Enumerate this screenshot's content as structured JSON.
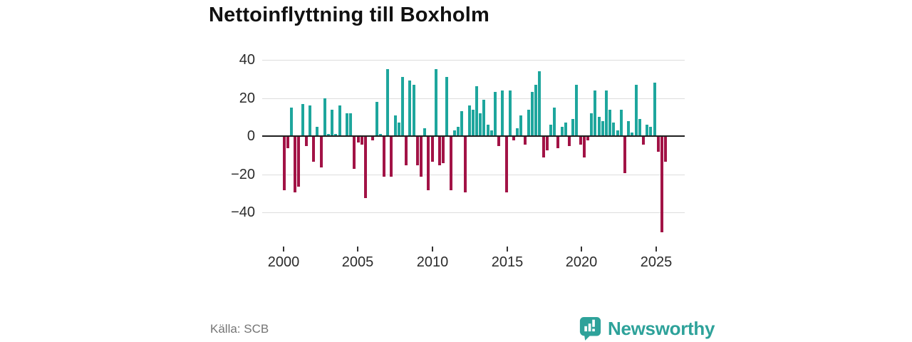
{
  "title": "Nettoinflyttning till Boxholm",
  "source": "Källa: SCB",
  "brand": {
    "name": "Newsworthy",
    "icon": "bar-chart-pin-icon"
  },
  "colors": {
    "positive_bar": "#1EA69D",
    "negative_bar": "#A21346",
    "gridline": "#DDDDDD",
    "zero_line": "#1F1F1F",
    "axis_text": "#2B2B2B",
    "title_text": "#111111",
    "source_text": "#757575",
    "brand_teal": "#2EA29A"
  },
  "chart_data": {
    "type": "bar",
    "title": "Nettoinflyttning till Boxholm",
    "frequency": "quarterly",
    "start_period": "2000 Q1",
    "end_period": "2025 Q4",
    "x_tick_labels": [
      "2000",
      "2005",
      "2010",
      "2015",
      "2020",
      "2025"
    ],
    "y_tick_labels": [
      "40",
      "20",
      "0",
      "−20",
      "−40"
    ],
    "y_ticks": [
      40,
      20,
      0,
      -20,
      -40
    ],
    "ylim": [
      -52,
      42
    ],
    "grid": true,
    "legend": false,
    "values": [
      -28,
      -6,
      15,
      -29,
      -26,
      17,
      -5,
      16,
      -13,
      5,
      -16,
      20,
      1,
      14,
      1,
      16,
      0,
      12,
      12,
      -17,
      -3,
      -4,
      -32,
      0,
      -2,
      18,
      1,
      -21,
      35,
      -21,
      11,
      7,
      31,
      -15,
      29,
      27,
      -15,
      -21,
      4,
      -28,
      -13,
      35,
      -15,
      -14,
      31,
      -28,
      3,
      5,
      13,
      -29,
      16,
      14,
      26,
      12,
      19,
      6,
      3,
      23,
      -5,
      24,
      -29,
      24,
      -2,
      4,
      11,
      -4,
      14,
      23,
      27,
      34,
      -11,
      -7,
      6,
      15,
      -6,
      5,
      7,
      -5,
      9,
      27,
      -4,
      -11,
      -2,
      12,
      24,
      10,
      8,
      24,
      14,
      7,
      3,
      14,
      -19,
      8,
      2,
      27,
      9,
      -4,
      6,
      5,
      28,
      -8,
      -50,
      -13
    ]
  }
}
